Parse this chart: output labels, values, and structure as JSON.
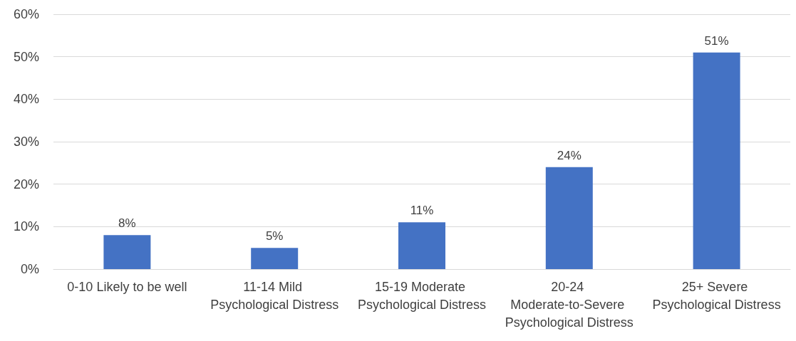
{
  "chart_data": {
    "type": "bar",
    "categories": [
      "0-10 Likely to be well",
      "11-14 Mild Psychological Distress",
      "15-19 Moderate Psychological Distress",
      "20-24 Moderate-to-Severe Psychological Distress",
      "25+ Severe Psychological Distress"
    ],
    "values": [
      8,
      5,
      11,
      24,
      51
    ],
    "value_labels": [
      "8%",
      "5%",
      "11%",
      "24%",
      "51%"
    ],
    "color": "#4472c4",
    "ylim": [
      0,
      60
    ],
    "yticks": [
      {
        "value": 0,
        "label": "0%"
      },
      {
        "value": 10,
        "label": "10%"
      },
      {
        "value": 20,
        "label": "20%"
      },
      {
        "value": 30,
        "label": "30%"
      },
      {
        "value": 40,
        "label": "40%"
      },
      {
        "value": 50,
        "label": "50%"
      },
      {
        "value": 60,
        "label": "60%"
      }
    ],
    "grid": "y"
  }
}
